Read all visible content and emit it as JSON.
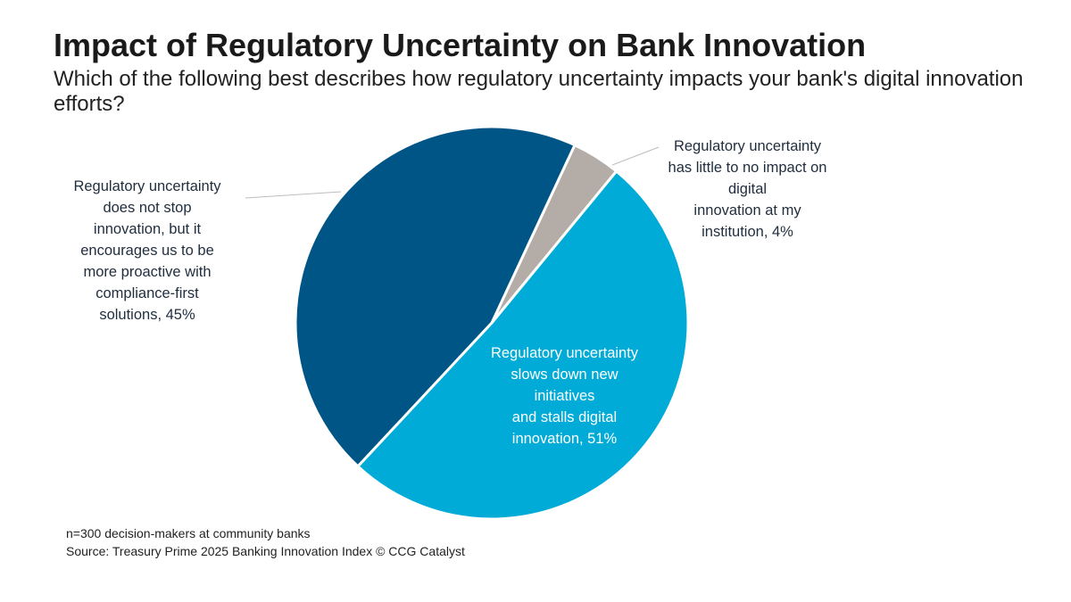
{
  "title": "Impact of Regulatory Uncertainty on Bank Innovation",
  "subtitle": "Which of the following best describes how regulatory uncertainty impacts your bank's digital innovation efforts?",
  "chart_data": {
    "type": "pie",
    "slices": [
      {
        "label_lines": [
          "Regulatory uncertainty",
          "has little to no impact on",
          "digital",
          "innovation at my",
          "institution, 4%"
        ],
        "value": 4,
        "color": "#b3aca7"
      },
      {
        "label_lines": [
          "Regulatory uncertainty",
          "slows down new",
          "initiatives",
          "and stalls digital",
          "innovation, 51%"
        ],
        "value": 51,
        "color": "#00abd8"
      },
      {
        "label_lines": [
          "Regulatory uncertainty",
          "does not stop",
          "innovation, but it",
          "encourages us to be",
          "more proactive with",
          "compliance-first",
          "solutions, 45%"
        ],
        "value": 45,
        "color": "#005587"
      }
    ]
  },
  "footnote": {
    "sample": "n=300 decision-makers at community banks",
    "source": "Source: Treasury Prime 2025 Banking Innovation Index © CCG Catalyst"
  }
}
